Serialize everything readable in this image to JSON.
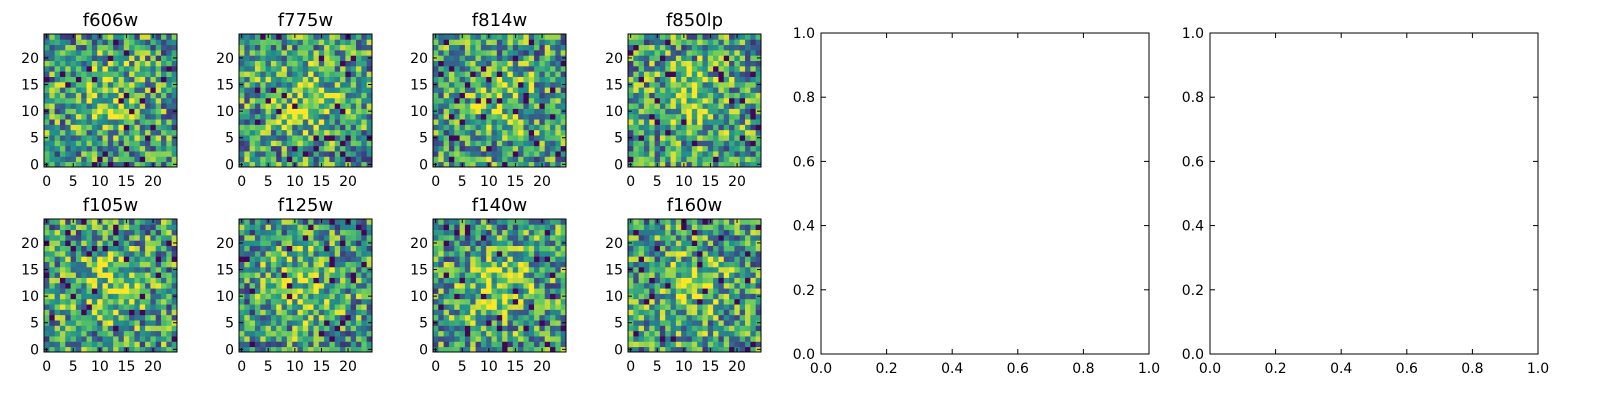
{
  "chart_data": [
    {
      "type": "heatmap",
      "title": "f606w",
      "xticks": [
        "0",
        "5",
        "10",
        "15",
        "20"
      ],
      "yticks": [
        "0",
        "5",
        "10",
        "15",
        "20"
      ],
      "grid_size": 25,
      "colormap": "viridis",
      "seed": 606
    },
    {
      "type": "heatmap",
      "title": "f775w",
      "xticks": [
        "0",
        "5",
        "10",
        "15",
        "20"
      ],
      "yticks": [
        "0",
        "5",
        "10",
        "15",
        "20"
      ],
      "grid_size": 25,
      "colormap": "viridis",
      "seed": 775
    },
    {
      "type": "heatmap",
      "title": "f814w",
      "xticks": [
        "0",
        "5",
        "10",
        "15",
        "20"
      ],
      "yticks": [
        "0",
        "5",
        "10",
        "15",
        "20"
      ],
      "grid_size": 25,
      "colormap": "viridis",
      "seed": 814
    },
    {
      "type": "heatmap",
      "title": "f850lp",
      "xticks": [
        "0",
        "5",
        "10",
        "15",
        "20"
      ],
      "yticks": [
        "0",
        "5",
        "10",
        "15",
        "20"
      ],
      "grid_size": 25,
      "colormap": "viridis",
      "seed": 850
    },
    {
      "type": "heatmap",
      "title": "f105w",
      "xticks": [
        "0",
        "5",
        "10",
        "15",
        "20"
      ],
      "yticks": [
        "0",
        "5",
        "10",
        "15",
        "20"
      ],
      "grid_size": 25,
      "colormap": "viridis",
      "seed": 105
    },
    {
      "type": "heatmap",
      "title": "f125w",
      "xticks": [
        "0",
        "5",
        "10",
        "15",
        "20"
      ],
      "yticks": [
        "0",
        "5",
        "10",
        "15",
        "20"
      ],
      "grid_size": 25,
      "colormap": "viridis",
      "seed": 125
    },
    {
      "type": "heatmap",
      "title": "f140w",
      "xticks": [
        "0",
        "5",
        "10",
        "15",
        "20"
      ],
      "yticks": [
        "0",
        "5",
        "10",
        "15",
        "20"
      ],
      "grid_size": 25,
      "colormap": "viridis",
      "seed": 140
    },
    {
      "type": "heatmap",
      "title": "f160w",
      "xticks": [
        "0",
        "5",
        "10",
        "15",
        "20"
      ],
      "yticks": [
        "0",
        "5",
        "10",
        "15",
        "20"
      ],
      "grid_size": 25,
      "colormap": "viridis",
      "seed": 160
    },
    {
      "type": "scatter",
      "title": "",
      "xlim": [
        0,
        1
      ],
      "ylim": [
        0,
        1
      ],
      "xticks": [
        "0.0",
        "0.2",
        "0.4",
        "0.6",
        "0.8",
        "1.0"
      ],
      "yticks": [
        "0.0",
        "0.2",
        "0.4",
        "0.6",
        "0.8",
        "1.0"
      ],
      "series": []
    },
    {
      "type": "scatter",
      "title": "",
      "xlim": [
        0,
        1
      ],
      "ylim": [
        0,
        1
      ],
      "xticks": [
        "0.0",
        "0.2",
        "0.4",
        "0.6",
        "0.8",
        "1.0"
      ],
      "yticks": [
        "0.0",
        "0.2",
        "0.4",
        "0.6",
        "0.8",
        "1.0"
      ],
      "series": []
    }
  ]
}
